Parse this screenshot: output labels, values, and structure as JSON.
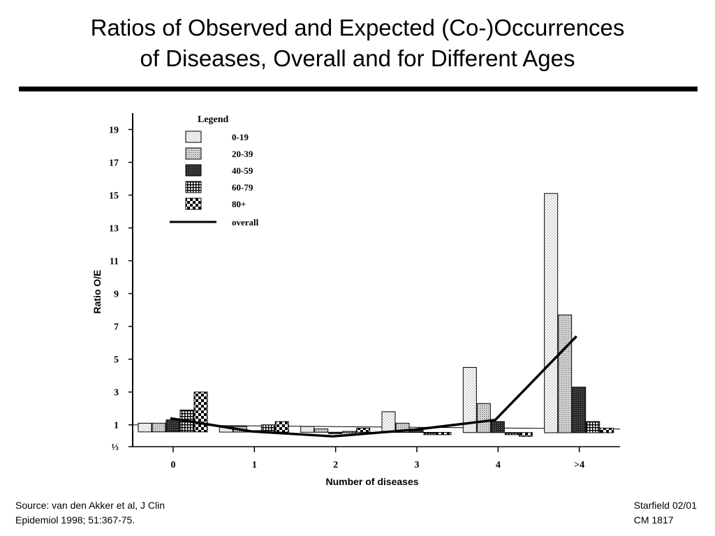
{
  "slide": {
    "title_line1": "Ratios of Observed and Expected (Co-)Occurrences",
    "title_line2": "of Diseases, Overall and for Different Ages",
    "source_line1": "Source:  van den Akker et al, J Clin",
    "source_line2": "Epidemiol 1998; 51:367-75.",
    "credit_line1": "Starfield 02/01",
    "credit_line2": "CM 1817"
  },
  "chart_data": {
    "type": "bar",
    "title": "",
    "xlabel": "Number of diseases",
    "ylabel": "Ratio O/E",
    "categories": [
      "0",
      "1",
      "2",
      "3",
      "4",
      ">4"
    ],
    "ylim": [
      -0.33,
      20
    ],
    "yticks": [
      -0.33,
      1,
      3,
      5,
      7,
      9,
      11,
      13,
      15,
      17,
      19
    ],
    "ytick_labels": [
      "⅓",
      "1",
      "3",
      "5",
      "7",
      "9",
      "11",
      "13",
      "15",
      "17",
      "19"
    ],
    "legend_title": "Legend",
    "legend_position": "top-left",
    "reference_line": 1,
    "series": [
      {
        "name": "0-19",
        "pattern": "light-dots",
        "values": [
          1.1,
          0.9,
          0.9,
          1.8,
          4.5,
          15.1
        ]
      },
      {
        "name": "20-39",
        "pattern": "dense-dots",
        "values": [
          1.1,
          0.9,
          0.75,
          1.1,
          2.3,
          7.7
        ]
      },
      {
        "name": "40-59",
        "pattern": "dark",
        "values": [
          1.3,
          0.65,
          0.5,
          0.75,
          1.2,
          3.3
        ]
      },
      {
        "name": "60-79",
        "pattern": "grid",
        "values": [
          1.9,
          1.0,
          0.6,
          0.4,
          0.4,
          1.2
        ]
      },
      {
        "name": "80+",
        "pattern": "checker",
        "values": [
          3.0,
          1.2,
          0.8,
          0.4,
          0.3,
          0.8
        ]
      }
    ],
    "line": {
      "name": "overall",
      "values": [
        1.4,
        0.6,
        0.3,
        0.7,
        1.3,
        6.4
      ]
    },
    "colors": {
      "axis": "#000000",
      "bars": "#000000",
      "background": "#ffffff"
    }
  }
}
